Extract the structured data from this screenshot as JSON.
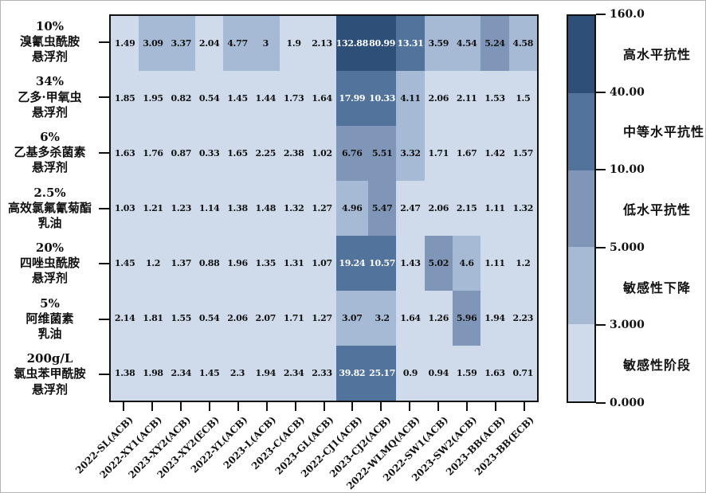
{
  "chart_data": {
    "type": "heatmap",
    "title": "",
    "x_tick_labels": [
      "2022-SL(ACB)",
      "2022-XY1(ACB)",
      "2023-XY2(ACB)",
      "2023-XY2(ECB)",
      "2022-YL(ACB)",
      "2023-L(ACB)",
      "2023-C(ACB)",
      "2023-GL(ACB)",
      "2022-CJ1(ACB)",
      "2023-CJ2(ACB)",
      "2022-WLMQ(ACB)",
      "2022-SW1(ACB)",
      "2023-SW2(ACB)",
      "2023-BB(ACB)",
      "2023-BB(ECB)"
    ],
    "rows": [
      {
        "label_lines": [
          "10%",
          "溴氰虫酰胺",
          "悬浮剂"
        ],
        "values": [
          "1.49",
          "3.09",
          "3.37",
          "2.04",
          "4.77",
          "3",
          "1.9",
          "2.13",
          "132.88",
          "80.99",
          "13.31",
          "3.59",
          "4.54",
          "5.24",
          "4.58"
        ]
      },
      {
        "label_lines": [
          "34%",
          "乙多·甲氧虫",
          "悬浮剂"
        ],
        "values": [
          "1.85",
          "1.95",
          "0.82",
          "0.54",
          "1.45",
          "1.44",
          "1.73",
          "1.64",
          "17.99",
          "10.33",
          "4.11",
          "2.06",
          "2.11",
          "1.53",
          "1.5"
        ]
      },
      {
        "label_lines": [
          "6%",
          "乙基多杀菌素",
          "悬浮剂"
        ],
        "values": [
          "1.63",
          "1.76",
          "0.87",
          "0.33",
          "1.65",
          "2.25",
          "2.38",
          "1.02",
          "6.76",
          "5.51",
          "3.32",
          "1.71",
          "1.67",
          "1.42",
          "1.57"
        ]
      },
      {
        "label_lines": [
          "2.5%",
          "高效氯氟氰菊酯",
          "乳油"
        ],
        "values": [
          "1.03",
          "1.21",
          "1.23",
          "1.14",
          "1.38",
          "1.48",
          "1.32",
          "1.27",
          "4.96",
          "5.47",
          "2.47",
          "2.06",
          "2.15",
          "1.11",
          "1.32"
        ]
      },
      {
        "label_lines": [
          "20%",
          "四唑虫酰胺",
          "悬浮剂"
        ],
        "values": [
          "1.45",
          "1.2",
          "1.37",
          "0.88",
          "1.96",
          "1.35",
          "1.31",
          "1.07",
          "19.24",
          "10.57",
          "1.43",
          "5.02",
          "4.6",
          "1.11",
          "1.2"
        ]
      },
      {
        "label_lines": [
          "5%",
          "阿维菌素",
          "乳油"
        ],
        "values": [
          "2.14",
          "1.81",
          "1.55",
          "0.54",
          "2.06",
          "2.07",
          "1.71",
          "1.27",
          "3.07",
          "3.2",
          "1.64",
          "1.26",
          "5.96",
          "1.94",
          "2.23"
        ]
      },
      {
        "label_lines": [
          "200g/L",
          "氯虫苯甲酰胺",
          "悬浮剂"
        ],
        "values": [
          "1.38",
          "1.98",
          "2.34",
          "1.45",
          "2.3",
          "1.94",
          "2.34",
          "2.33",
          "39.82",
          "25.17",
          "0.9",
          "0.94",
          "1.59",
          "1.63",
          "0.71"
        ]
      }
    ],
    "legend": {
      "tick_labels": [
        "160.0",
        "40.00",
        "10.00",
        "5.000",
        "3.000",
        "0.000"
      ],
      "bands": [
        {
          "label": "高水平抗性",
          "min": 40,
          "max": 160,
          "color": "#2d4f78"
        },
        {
          "label": "中等水平抗性",
          "min": 10,
          "max": 40,
          "color": "#51739c"
        },
        {
          "label": "低水平抗性",
          "min": 5,
          "max": 10,
          "color": "#8096b8"
        },
        {
          "label": "敏感性下降",
          "min": 3,
          "max": 5,
          "color": "#a7bad5"
        },
        {
          "label": "敏感性阶段",
          "min": 0,
          "max": 3,
          "color": "#cfdbea"
        }
      ]
    },
    "cell_text_colors": {
      "dark": "#111111",
      "light": "#ffffff",
      "white_text_min_value": 10
    },
    "axis_color": "#111111"
  }
}
